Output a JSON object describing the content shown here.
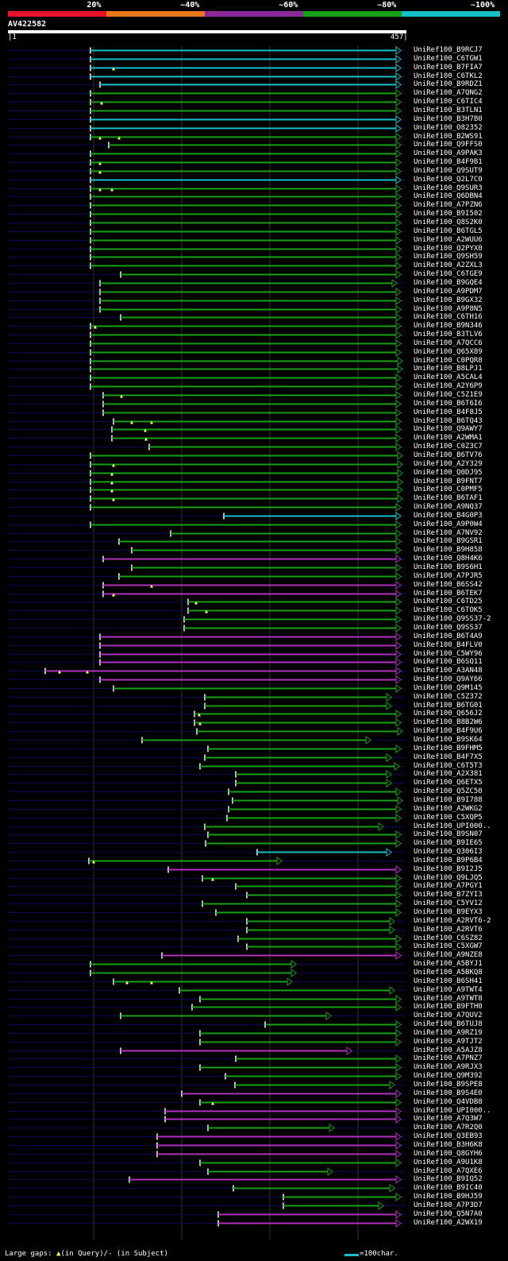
{
  "legend": {
    "labels": [
      "20%",
      "~40%",
      "~60%",
      "~80%",
      "~100%"
    ],
    "colors": [
      "#e8132a",
      "#e87818",
      "#8c2a9a",
      "#18a018",
      "#17c0c8"
    ]
  },
  "query": {
    "title": "AV422582",
    "start": "|1",
    "end": "457|",
    "length": 457
  },
  "footer": {
    "gaps_prefix": "Large gaps: ",
    "query_gap": "(in Query)/",
    "subject_gap": "- (in Subject)",
    "scale": "=100char."
  },
  "band_colors": {
    "green": "#18a018",
    "cyan": "#17c0c8",
    "purple": "#b030c0",
    "yellow": "#ffff66",
    "dotted": "#0b0b55"
  },
  "hits": [
    {
      "name": "UniRef100_B9RCJ7",
      "c": "cyan",
      "s": 114,
      "e": 505
    },
    {
      "name": "UniRef100_C6TGW1",
      "c": "cyan",
      "s": 114,
      "e": 505
    },
    {
      "name": "UniRef100_B7FIA7",
      "c": "cyan",
      "s": 114,
      "e": 505,
      "g": [
        143
      ]
    },
    {
      "name": "UniRef100_C6TKL2",
      "c": "cyan",
      "s": 114,
      "e": 505
    },
    {
      "name": "UniRef100_B9RDZ1",
      "c": "cyan",
      "s": 126,
      "e": 505
    },
    {
      "name": "UniRef100_A7QNG2",
      "c": "green",
      "s": 114,
      "e": 505
    },
    {
      "name": "UniRef100_C6TIC4",
      "c": "green",
      "s": 114,
      "e": 505,
      "g": [
        128
      ]
    },
    {
      "name": "UniRef100_B3TLN1",
      "c": "green",
      "s": 114,
      "e": 505
    },
    {
      "name": "UniRef100_B3H7B0",
      "c": "cyan",
      "s": 114,
      "e": 505
    },
    {
      "name": "UniRef100_O82352",
      "c": "cyan",
      "s": 114,
      "e": 505
    },
    {
      "name": "UniRef100_B2WS91",
      "c": "green",
      "s": 114,
      "e": 505,
      "g": [
        126,
        150
      ]
    },
    {
      "name": "UniRef100_Q9FFS0",
      "c": "green",
      "s": 137,
      "e": 505
    },
    {
      "name": "UniRef100_A9PAK3",
      "c": "green",
      "s": 114,
      "e": 505
    },
    {
      "name": "UniRef100_B4F9B1",
      "c": "green",
      "s": 114,
      "e": 505,
      "g": [
        126
      ]
    },
    {
      "name": "UniRef100_Q9SUT9",
      "c": "green",
      "s": 114,
      "e": 505,
      "g": [
        126
      ]
    },
    {
      "name": "UniRef100_Q2L7C0",
      "c": "cyan",
      "s": 114,
      "e": 505
    },
    {
      "name": "UniRef100_Q9SUR3",
      "c": "green",
      "s": 114,
      "e": 505,
      "g": [
        126,
        141
      ]
    },
    {
      "name": "UniRef100_Q6DBN4",
      "c": "green",
      "s": 114,
      "e": 505
    },
    {
      "name": "UniRef100_A7PZN6",
      "c": "green",
      "s": 114,
      "e": 505
    },
    {
      "name": "UniRef100_B9I502",
      "c": "green",
      "s": 114,
      "e": 505
    },
    {
      "name": "UniRef100_Q8S2K0",
      "c": "green",
      "s": 114,
      "e": 505
    },
    {
      "name": "UniRef100_B6TGL5",
      "c": "green",
      "s": 114,
      "e": 505
    },
    {
      "name": "UniRef100_A2WUU6",
      "c": "green",
      "s": 114,
      "e": 505
    },
    {
      "name": "UniRef100_Q2PYX0",
      "c": "green",
      "s": 114,
      "e": 505
    },
    {
      "name": "UniRef100_Q9SH59",
      "c": "green",
      "s": 114,
      "e": 505
    },
    {
      "name": "UniRef100_A2ZXL3",
      "c": "green",
      "s": 114,
      "e": 505
    },
    {
      "name": "UniRef100_C6TGE9",
      "c": "green",
      "s": 152,
      "e": 505
    },
    {
      "name": "UniRef100_B9GQE4",
      "c": "green",
      "s": 126,
      "e": 500
    },
    {
      "name": "UniRef100_A9PDM7",
      "c": "green",
      "s": 126,
      "e": 505
    },
    {
      "name": "UniRef100_B9GX32",
      "c": "green",
      "s": 126,
      "e": 505
    },
    {
      "name": "UniRef100_A9P8N5",
      "c": "green",
      "s": 126,
      "e": 505
    },
    {
      "name": "UniRef100_C6TH16",
      "c": "green",
      "s": 152,
      "e": 505
    },
    {
      "name": "UniRef100_B9N346",
      "c": "green",
      "s": 114,
      "e": 505,
      "g": [
        120
      ]
    },
    {
      "name": "UniRef100_B3TLV6",
      "c": "green",
      "s": 114,
      "e": 505
    },
    {
      "name": "UniRef100_A7QCC6",
      "c": "green",
      "s": 114,
      "e": 505
    },
    {
      "name": "UniRef100_Q65X89",
      "c": "green",
      "s": 114,
      "e": 505
    },
    {
      "name": "UniRef100_C0PQR8",
      "c": "green",
      "s": 114,
      "e": 507
    },
    {
      "name": "UniRef100_B8LPJ1",
      "c": "green",
      "s": 114,
      "e": 507
    },
    {
      "name": "UniRef100_A5CAL4",
      "c": "green",
      "s": 114,
      "e": 505
    },
    {
      "name": "UniRef100_A2Y6P9",
      "c": "green",
      "s": 114,
      "e": 505
    },
    {
      "name": "UniRef100_C5Z1E9",
      "c": "green",
      "s": 130,
      "e": 505,
      "g": [
        153
      ]
    },
    {
      "name": "UniRef100_B6T6I6",
      "c": "green",
      "s": 130,
      "e": 505
    },
    {
      "name": "UniRef100_B4F8J5",
      "c": "green",
      "s": 130,
      "e": 505
    },
    {
      "name": "UniRef100_B6TQ43",
      "c": "green",
      "s": 143,
      "e": 505,
      "g": [
        166,
        191
      ]
    },
    {
      "name": "UniRef100_Q9AWY7",
      "c": "green",
      "s": 141,
      "e": 505,
      "g": [
        183
      ]
    },
    {
      "name": "UniRef100_A2WMA1",
      "c": "green",
      "s": 141,
      "e": 505,
      "g": [
        184
      ]
    },
    {
      "name": "UniRef100_C0Z3C7",
      "c": "green",
      "s": 188,
      "e": 505
    },
    {
      "name": "UniRef100_B6TV76",
      "c": "green",
      "s": 114,
      "e": 507
    },
    {
      "name": "UniRef100_A2Y329",
      "c": "green",
      "s": 114,
      "e": 507,
      "g": [
        143
      ]
    },
    {
      "name": "UniRef100_Q0DJ95",
      "c": "green",
      "s": 114,
      "e": 507,
      "g": [
        141
      ]
    },
    {
      "name": "UniRef100_B9FNT7",
      "c": "green",
      "s": 114,
      "e": 507,
      "g": [
        141
      ]
    },
    {
      "name": "UniRef100_C0PMF5",
      "c": "green",
      "s": 114,
      "e": 507,
      "g": [
        141
      ]
    },
    {
      "name": "UniRef100_B6TAF1",
      "c": "green",
      "s": 114,
      "e": 507,
      "g": [
        143
      ]
    },
    {
      "name": "UniRef100_A9NQ37",
      "c": "green",
      "s": 114,
      "e": 505
    },
    {
      "name": "UniRef100_B4G0P3",
      "c": "cyan",
      "s": 282,
      "e": 505
    },
    {
      "name": "UniRef100_A9P0W4",
      "c": "green",
      "s": 114,
      "e": 505
    },
    {
      "name": "UniRef100_A7NV92",
      "c": "green",
      "s": 215,
      "e": 505
    },
    {
      "name": "UniRef100_B9GSR1",
      "c": "green",
      "s": 150,
      "e": 505
    },
    {
      "name": "UniRef100_B9H858",
      "c": "green",
      "s": 166,
      "e": 505
    },
    {
      "name": "UniRef100_Q8H4K6",
      "c": "purple",
      "s": 130,
      "e": 505
    },
    {
      "name": "UniRef100_B9S6H1",
      "c": "green",
      "s": 166,
      "e": 505
    },
    {
      "name": "UniRef100_A7PJR5",
      "c": "green",
      "s": 150,
      "e": 505
    },
    {
      "name": "UniRef100_B6SS42",
      "c": "purple",
      "s": 130,
      "e": 505,
      "g": [
        191
      ]
    },
    {
      "name": "UniRef100_B6TEK7",
      "c": "purple",
      "s": 130,
      "e": 505,
      "g": [
        143
      ]
    },
    {
      "name": "UniRef100_C6TD25",
      "c": "green",
      "s": 237,
      "e": 505,
      "g": [
        247
      ]
    },
    {
      "name": "UniRef100_C6TOK5",
      "c": "green",
      "s": 237,
      "e": 505,
      "g": [
        260
      ]
    },
    {
      "name": "UniRef100_Q9SS37-2",
      "c": "green",
      "s": 232,
      "e": 505
    },
    {
      "name": "UniRef100_Q9SS37",
      "c": "green",
      "s": 232,
      "e": 505
    },
    {
      "name": "UniRef100_B6T4A9",
      "c": "purple",
      "s": 126,
      "e": 505
    },
    {
      "name": "UniRef100_B4FLV0",
      "c": "purple",
      "s": 126,
      "e": 505
    },
    {
      "name": "UniRef100_C5WY96",
      "c": "purple",
      "s": 126,
      "e": 505
    },
    {
      "name": "UniRef100_B6SQ11",
      "c": "purple",
      "s": 126,
      "e": 505
    },
    {
      "name": "UniRef100_A3AN48",
      "c": "purple",
      "s": 57,
      "e": 505,
      "g": [
        75,
        110
      ]
    },
    {
      "name": "UniRef100_Q9AY66",
      "c": "purple",
      "s": 126,
      "e": 505
    },
    {
      "name": "UniRef100_Q9M145",
      "c": "green",
      "s": 143,
      "e": 505
    },
    {
      "name": "UniRef100_C5Z372",
      "c": "green",
      "s": 258,
      "e": 493
    },
    {
      "name": "UniRef100_B6TG01",
      "c": "green",
      "s": 258,
      "e": 493
    },
    {
      "name": "UniRef100_Q656J2",
      "c": "green",
      "s": 245,
      "e": 505,
      "g": [
        251
      ]
    },
    {
      "name": "UniRef100_B8B2W6",
      "c": "green",
      "s": 245,
      "e": 505,
      "g": [
        252
      ]
    },
    {
      "name": "UniRef100_B4F9U6",
      "c": "green",
      "s": 248,
      "e": 507
    },
    {
      "name": "UniRef100_B9SK64",
      "c": "green",
      "s": 179,
      "e": 467
    },
    {
      "name": "UniRef100_B9FHM5",
      "c": "green",
      "s": 262,
      "e": 505
    },
    {
      "name": "UniRef100_B4F7X5",
      "c": "green",
      "s": 258,
      "e": 493
    },
    {
      "name": "UniRef100_C6T5T3",
      "c": "green",
      "s": 252,
      "e": 503
    },
    {
      "name": "UniRef100_A2X381",
      "c": "green",
      "s": 297,
      "e": 493
    },
    {
      "name": "UniRef100_Q6ETX5",
      "c": "green",
      "s": 297,
      "e": 493
    },
    {
      "name": "UniRef100_Q5ZC50",
      "c": "green",
      "s": 288,
      "e": 505
    },
    {
      "name": "UniRef100_B9I788",
      "c": "green",
      "s": 293,
      "e": 507
    },
    {
      "name": "UniRef100_A2WKG2",
      "c": "green",
      "s": 288,
      "e": 505
    },
    {
      "name": "UniRef100_C5XQP5",
      "c": "green",
      "s": 286,
      "e": 505
    },
    {
      "name": "UniRef100_UPI000..",
      "c": "green",
      "s": 258,
      "e": 483
    },
    {
      "name": "UniRef100_B9SN07",
      "c": "green",
      "s": 262,
      "e": 505
    },
    {
      "name": "UniRef100_B9IE65",
      "c": "green",
      "s": 259,
      "e": 505
    },
    {
      "name": "UniRef100_Q306I3",
      "c": "cyan",
      "s": 324,
      "e": 493
    },
    {
      "name": "UniRef100_B9P6B4",
      "c": "green",
      "s": 112,
      "e": 355,
      "g": [
        118
      ]
    },
    {
      "name": "UniRef100_B9I2J5",
      "c": "purple",
      "s": 212,
      "e": 505
    },
    {
      "name": "UniRef100_Q9LJQ5",
      "c": "green",
      "s": 255,
      "e": 505,
      "g": [
        268
      ]
    },
    {
      "name": "UniRef100_A7PGY1",
      "c": "green",
      "s": 297,
      "e": 505
    },
    {
      "name": "UniRef100_B7ZYI3",
      "c": "green",
      "s": 311,
      "e": 505
    },
    {
      "name": "UniRef100_C5YV12",
      "c": "green",
      "s": 255,
      "e": 505
    },
    {
      "name": "UniRef100_B9EYX3",
      "c": "green",
      "s": 272,
      "e": 505
    },
    {
      "name": "UniRef100_A2RVT6-2",
      "c": "green",
      "s": 311,
      "e": 497
    },
    {
      "name": "UniRef100_A2RVT6",
      "c": "green",
      "s": 311,
      "e": 497
    },
    {
      "name": "UniRef100_C6SZ82",
      "c": "green",
      "s": 300,
      "e": 505
    },
    {
      "name": "UniRef100_C5XGW7",
      "c": "green",
      "s": 311,
      "e": 505
    },
    {
      "name": "UniRef100_A9NZE8",
      "c": "purple",
      "s": 204,
      "e": 505
    },
    {
      "name": "UniRef100_A5BYJ1",
      "c": "green",
      "s": 114,
      "e": 373
    },
    {
      "name": "UniRef100_A5BKQ8",
      "c": "green",
      "s": 114,
      "e": 373
    },
    {
      "name": "UniRef100_B6SH41",
      "c": "green",
      "s": 143,
      "e": 368,
      "g": [
        160,
        191
      ]
    },
    {
      "name": "UniRef100_A9TWT4",
      "c": "green",
      "s": 226,
      "e": 497
    },
    {
      "name": "UniRef100_A9TWT8",
      "c": "green",
      "s": 252,
      "e": 505
    },
    {
      "name": "UniRef100_B9FTH0",
      "c": "green",
      "s": 242,
      "e": 505
    },
    {
      "name": "UniRef100_A7QUV2",
      "c": "green",
      "s": 152,
      "e": 417
    },
    {
      "name": "UniRef100_B6TUJ8",
      "c": "green",
      "s": 334,
      "e": 505
    },
    {
      "name": "UniRef100_A9RZ19",
      "c": "green",
      "s": 252,
      "e": 505
    },
    {
      "name": "UniRef100_A9TJT2",
      "c": "green",
      "s": 252,
      "e": 505
    },
    {
      "name": "UniRef100_A5AJZ8",
      "c": "purple",
      "s": 152,
      "e": 443
    },
    {
      "name": "UniRef100_A7PNZ7",
      "c": "green",
      "s": 297,
      "e": 505
    },
    {
      "name": "UniRef100_A9RJX3",
      "c": "green",
      "s": 252,
      "e": 505
    },
    {
      "name": "UniRef100_Q9M392",
      "c": "green",
      "s": 284,
      "e": 505
    },
    {
      "name": "UniRef100_B9SPE8",
      "c": "green",
      "s": 296,
      "e": 497
    },
    {
      "name": "UniRef100_B9S4E0",
      "c": "purple",
      "s": 229,
      "e": 505
    },
    {
      "name": "UniRef100_Q4VDB8",
      "c": "green",
      "s": 252,
      "e": 505,
      "g": [
        268
      ]
    },
    {
      "name": "UniRef100_UPI000..",
      "c": "purple",
      "s": 208,
      "e": 505
    },
    {
      "name": "UniRef100_A7Q3W7",
      "c": "purple",
      "s": 208,
      "e": 505
    },
    {
      "name": "UniRef100_A7R2Q0",
      "c": "green",
      "s": 262,
      "e": 421
    },
    {
      "name": "UniRef100_Q3EB93",
      "c": "purple",
      "s": 198,
      "e": 505
    },
    {
      "name": "UniRef100_B3H6K8",
      "c": "purple",
      "s": 198,
      "e": 505
    },
    {
      "name": "UniRef100_Q8GYH6",
      "c": "purple",
      "s": 198,
      "e": 505
    },
    {
      "name": "UniRef100_A9U1K8",
      "c": "green",
      "s": 252,
      "e": 505
    },
    {
      "name": "UniRef100_A7QXE6",
      "c": "green",
      "s": 262,
      "e": 419
    },
    {
      "name": "UniRef100_B9IQ52",
      "c": "purple",
      "s": 163,
      "e": 505
    },
    {
      "name": "UniRef100_B9IC40",
      "c": "green",
      "s": 294,
      "e": 497
    },
    {
      "name": "UniRef100_B9HJ59",
      "c": "green",
      "s": 357,
      "e": 505
    },
    {
      "name": "UniRef100_A7P3D7",
      "c": "green",
      "s": 357,
      "e": 483
    },
    {
      "name": "UniRef100_Q5N7A0",
      "c": "purple",
      "s": 275,
      "e": 505
    },
    {
      "name": "UniRef100_A2WX19",
      "c": "purple",
      "s": 275,
      "e": 505
    }
  ]
}
